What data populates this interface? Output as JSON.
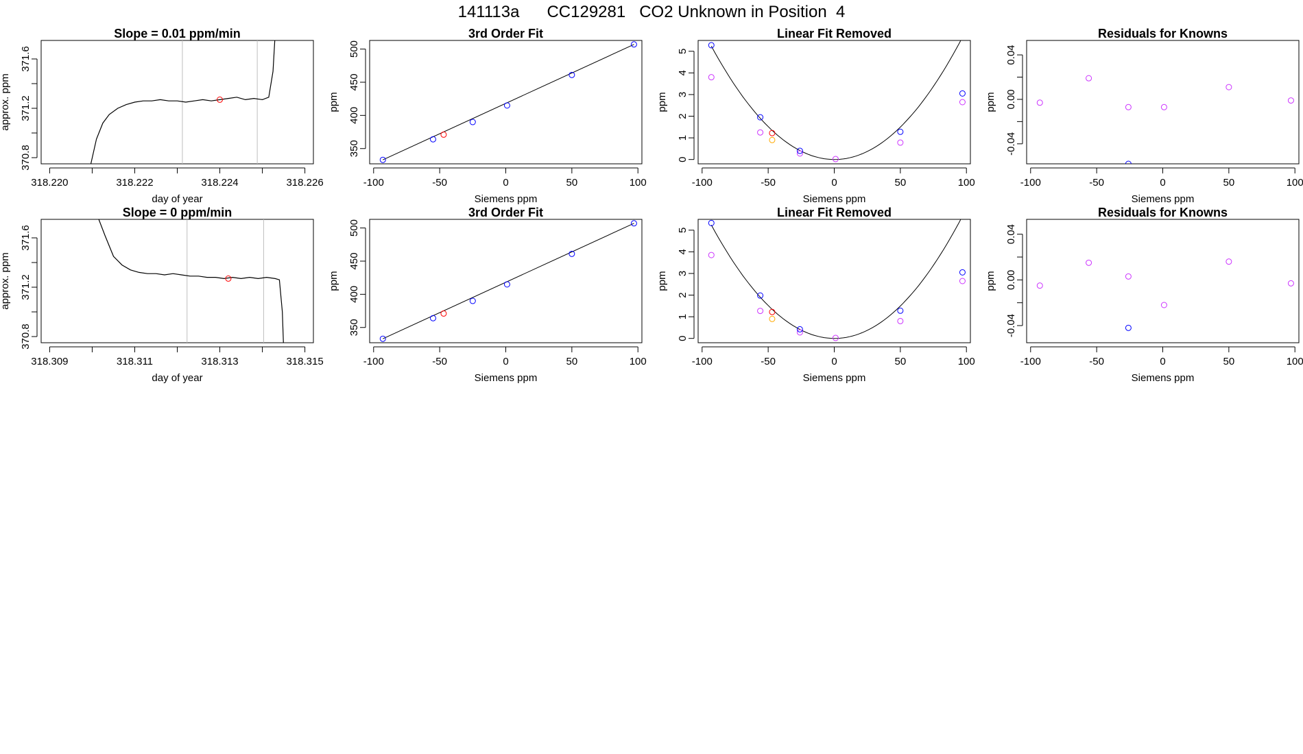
{
  "page": {
    "title": "141113a      CC129281   CO2 Unknown in Position  4"
  },
  "colors": {
    "axis": "#000000",
    "line": "#000000",
    "vline": "#bebebe",
    "known": "#0000ff",
    "fit_residual": "#cc33ff",
    "sample": "#ff0000",
    "sample_fit": "#ffaa00"
  },
  "chart_data": [
    {
      "type": "line",
      "row": 0,
      "col": 0,
      "title": "Slope =  0.01  ppm/min",
      "xlabel": "day of year",
      "ylabel": "approx. ppm",
      "xlim": [
        318.2198,
        318.2262
      ],
      "ylim": [
        370.75,
        371.75
      ],
      "xticks": [
        318.22,
        318.221,
        318.222,
        318.223,
        318.224,
        318.225,
        318.226
      ],
      "xtick_labels": [
        "318.220",
        "",
        "318.222",
        "",
        "318.224",
        "",
        "318.226"
      ],
      "yticks": [
        370.8,
        371.0,
        371.2,
        371.4,
        371.6
      ],
      "ytick_labels": [
        "370.8",
        "",
        "371.2",
        "",
        "371.6"
      ],
      "trace_x": [
        318.22095,
        318.2211,
        318.22125,
        318.2214,
        318.2216,
        318.2218,
        318.222,
        318.2222,
        318.2224,
        318.2226,
        318.2228,
        318.223,
        318.2232,
        318.2234,
        318.2236,
        318.2238,
        318.224,
        318.2242,
        318.2244,
        318.2246,
        318.2248,
        318.225,
        318.22515,
        318.22525,
        318.2253
      ],
      "trace_y": [
        370.72,
        370.95,
        371.08,
        371.15,
        371.2,
        371.23,
        371.25,
        371.26,
        371.26,
        371.27,
        371.26,
        371.26,
        371.25,
        371.26,
        371.27,
        371.26,
        371.27,
        371.28,
        371.29,
        371.27,
        371.28,
        371.27,
        371.29,
        371.5,
        371.8
      ],
      "vlines": [
        318.22312,
        318.22488
      ],
      "marker": {
        "x": 318.224,
        "y": 371.27
      }
    },
    {
      "type": "scatter",
      "row": 0,
      "col": 1,
      "title": "3rd Order Fit",
      "xlabel": "Siemens ppm",
      "ylabel": "ppm",
      "xlim": [
        -103,
        103
      ],
      "ylim": [
        327,
        513
      ],
      "xticks": [
        -100,
        -50,
        0,
        50,
        100
      ],
      "xtick_labels": [
        "-100",
        "-50",
        "0",
        "50",
        "100"
      ],
      "yticks": [
        350,
        400,
        450,
        500
      ],
      "ytick_labels": [
        "350",
        "400",
        "450",
        "500"
      ],
      "fit_line": [
        [
          -93,
          333
        ],
        [
          97,
          507
        ]
      ],
      "known_points": [
        [
          -93,
          333
        ],
        [
          -55,
          364
        ],
        [
          -25,
          390
        ],
        [
          1,
          415
        ],
        [
          50,
          461
        ],
        [
          97,
          507
        ]
      ],
      "sample_point": [
        -47,
        371
      ]
    },
    {
      "type": "scatter",
      "row": 0,
      "col": 2,
      "title": "Linear Fit Removed",
      "xlabel": "Siemens ppm",
      "ylabel": "ppm",
      "xlim": [
        -103,
        103
      ],
      "ylim": [
        -0.2,
        5.5
      ],
      "xticks": [
        -100,
        -50,
        0,
        50,
        100
      ],
      "xtick_labels": [
        "-100",
        "-50",
        "0",
        "50",
        "100"
      ],
      "yticks": [
        0,
        1,
        2,
        3,
        4,
        5
      ],
      "ytick_labels": [
        "0",
        "1",
        "2",
        "3",
        "4",
        "5"
      ],
      "fit_curve": {
        "x_from": -93,
        "x_to": 97,
        "a": 0.000603,
        "b": -0.000226,
        "c": 0
      },
      "known_points": [
        [
          -93,
          5.28
        ],
        [
          -56,
          1.95
        ],
        [
          -26,
          0.4
        ],
        [
          50,
          1.28
        ],
        [
          97,
          3.05
        ]
      ],
      "fit_points": [
        [
          -93,
          3.8
        ],
        [
          -56,
          1.25
        ],
        [
          -26,
          0.28
        ],
        [
          1,
          0.02
        ],
        [
          50,
          0.78
        ],
        [
          97,
          2.65
        ]
      ],
      "sample_point": [
        -47,
        1.22
      ],
      "sample_fit_point": [
        -47,
        0.9
      ]
    },
    {
      "type": "scatter",
      "row": 0,
      "col": 3,
      "title": "Residuals for Knowns",
      "xlabel": "Siemens ppm",
      "ylabel": "ppm",
      "xlim": [
        -103,
        103
      ],
      "ylim": [
        -0.058,
        0.053
      ],
      "xticks": [
        -100,
        -50,
        0,
        50,
        100
      ],
      "xtick_labels": [
        "-100",
        "-50",
        "0",
        "50",
        "100"
      ],
      "yticks": [
        -0.04,
        -0.02,
        0.0,
        0.02,
        0.04
      ],
      "ytick_labels": [
        "-0.04",
        "",
        "0.00",
        "",
        "0.04"
      ],
      "points": [
        [
          -93,
          -0.003
        ],
        [
          -56,
          0.019
        ],
        [
          -26,
          -0.007
        ],
        [
          1,
          -0.007
        ],
        [
          50,
          0.011
        ],
        [
          97,
          -0.001
        ]
      ],
      "known_points": [
        [
          -26,
          -0.058
        ]
      ]
    },
    {
      "type": "line",
      "row": 1,
      "col": 0,
      "title": "Slope =  0  ppm/min",
      "xlabel": "day of year",
      "ylabel": "approx. ppm",
      "xlim": [
        318.3088,
        318.3152
      ],
      "ylim": [
        370.75,
        371.75
      ],
      "xticks": [
        318.309,
        318.31,
        318.311,
        318.312,
        318.313,
        318.314,
        318.315
      ],
      "xtick_labels": [
        "318.309",
        "",
        "318.311",
        "",
        "318.313",
        "",
        "318.315"
      ],
      "yticks": [
        370.8,
        371.0,
        371.2,
        371.4,
        371.6
      ],
      "ytick_labels": [
        "370.8",
        "",
        "371.2",
        "",
        "371.6"
      ],
      "trace_x": [
        318.3101,
        318.3103,
        318.3105,
        318.3107,
        318.3109,
        318.3111,
        318.3113,
        318.3115,
        318.3117,
        318.3119,
        318.3121,
        318.3123,
        318.3125,
        318.3127,
        318.3129,
        318.3131,
        318.3133,
        318.3135,
        318.3137,
        318.3139,
        318.3141,
        318.3143,
        318.3144,
        318.31447,
        318.3145
      ],
      "trace_y": [
        371.8,
        371.62,
        371.45,
        371.38,
        371.34,
        371.32,
        371.31,
        371.31,
        371.3,
        371.31,
        371.3,
        371.29,
        371.29,
        371.28,
        371.28,
        371.27,
        371.28,
        371.27,
        371.28,
        371.27,
        371.28,
        371.27,
        371.26,
        371.0,
        370.7
      ],
      "vlines": [
        318.31223,
        318.31403
      ],
      "marker": {
        "x": 318.3132,
        "y": 371.27
      }
    },
    {
      "type": "scatter",
      "row": 1,
      "col": 1,
      "title": "3rd Order Fit",
      "xlabel": "Siemens ppm",
      "ylabel": "ppm",
      "xlim": [
        -103,
        103
      ],
      "ylim": [
        327,
        513
      ],
      "xticks": [
        -100,
        -50,
        0,
        50,
        100
      ],
      "xtick_labels": [
        "-100",
        "-50",
        "0",
        "50",
        "100"
      ],
      "yticks": [
        350,
        400,
        450,
        500
      ],
      "ytick_labels": [
        "350",
        "400",
        "450",
        "500"
      ],
      "fit_line": [
        [
          -93,
          333
        ],
        [
          97,
          507
        ]
      ],
      "known_points": [
        [
          -93,
          333
        ],
        [
          -55,
          364
        ],
        [
          -25,
          390
        ],
        [
          1,
          415
        ],
        [
          50,
          461
        ],
        [
          97,
          507
        ]
      ],
      "sample_point": [
        -47,
        371
      ]
    },
    {
      "type": "scatter",
      "row": 1,
      "col": 2,
      "title": "Linear Fit Removed",
      "xlabel": "Siemens ppm",
      "ylabel": "ppm",
      "xlim": [
        -103,
        103
      ],
      "ylim": [
        -0.2,
        5.5
      ],
      "xticks": [
        -100,
        -50,
        0,
        50,
        100
      ],
      "xtick_labels": [
        "-100",
        "-50",
        "0",
        "50",
        "100"
      ],
      "yticks": [
        0,
        1,
        2,
        3,
        4,
        5
      ],
      "ytick_labels": [
        "0",
        "1",
        "2",
        "3",
        "4",
        "5"
      ],
      "fit_curve": {
        "x_from": -93,
        "x_to": 97,
        "a": 0.000603,
        "b": -0.000226,
        "c": 0
      },
      "known_points": [
        [
          -93,
          5.33
        ],
        [
          -56,
          1.98
        ],
        [
          -26,
          0.42
        ],
        [
          50,
          1.28
        ],
        [
          97,
          3.05
        ]
      ],
      "fit_points": [
        [
          -93,
          3.85
        ],
        [
          -56,
          1.27
        ],
        [
          -26,
          0.28
        ],
        [
          1,
          0.02
        ],
        [
          50,
          0.8
        ],
        [
          97,
          2.65
        ]
      ],
      "sample_point": [
        -47,
        1.22
      ],
      "sample_fit_point": [
        -47,
        0.9
      ]
    },
    {
      "type": "scatter",
      "row": 1,
      "col": 3,
      "title": "Residuals for Knowns",
      "xlabel": "Siemens ppm",
      "ylabel": "ppm",
      "xlim": [
        -103,
        103
      ],
      "ylim": [
        -0.055,
        0.053
      ],
      "xticks": [
        -100,
        -50,
        0,
        50,
        100
      ],
      "xtick_labels": [
        "-100",
        "-50",
        "0",
        "50",
        "100"
      ],
      "yticks": [
        -0.04,
        -0.02,
        0.0,
        0.02,
        0.04
      ],
      "ytick_labels": [
        "-0.04",
        "",
        "0.00",
        "",
        "0.04"
      ],
      "points": [
        [
          -93,
          -0.005
        ],
        [
          -56,
          0.015
        ],
        [
          -26,
          0.003
        ],
        [
          1,
          -0.022
        ],
        [
          50,
          0.016
        ],
        [
          97,
          -0.003
        ]
      ],
      "known_points": [
        [
          -26,
          -0.042
        ]
      ]
    }
  ]
}
